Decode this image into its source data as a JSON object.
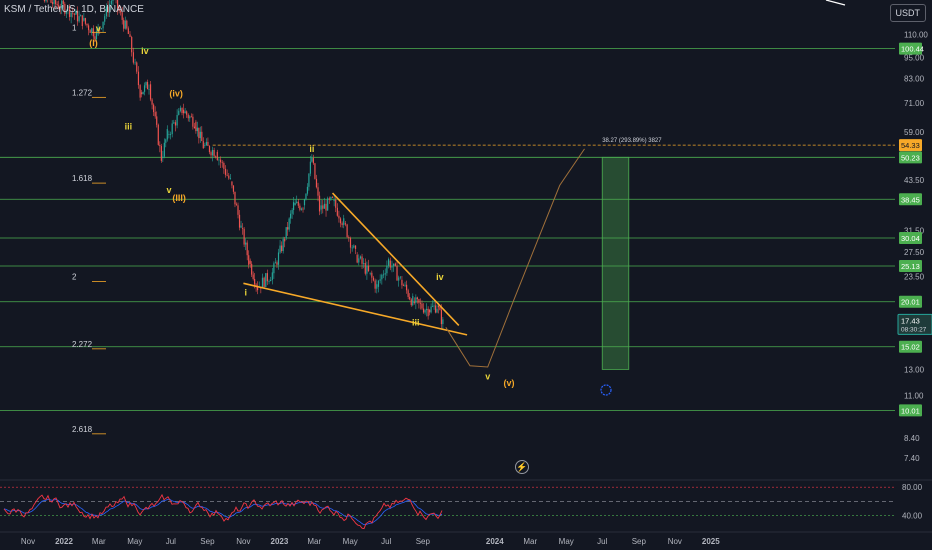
{
  "header": {
    "symbol_label": "KSM / TetherUS, 1D, BINANCE",
    "currency_button": "USDT"
  },
  "price_tag": {
    "price": "17.43",
    "timer": "08:30:27"
  },
  "target_label": "38.27 (293.89%) 3827",
  "colors": {
    "background": "#131722",
    "level_line": "#4caf50",
    "level_tag": "#4caf50",
    "trendline": "#f7a928",
    "candle_up": "#26a69a",
    "candle_down": "#ef5350",
    "projection": "#a0703a",
    "target_dash": "#f7a928",
    "rsi_line": "#f23645",
    "rsi_ma": "#2962ff"
  },
  "chart_data": {
    "type": "candlestick",
    "title": "KSM / TetherUS, 1D, BINANCE",
    "yaxis_scale": "log",
    "ylim": [
      6.5,
      150
    ],
    "y_ticks": [
      "110.00",
      "95.00",
      "83.00",
      "71.00",
      "59.00",
      "50.23",
      "43.50",
      "38.45",
      "31.50",
      "30.04",
      "27.50",
      "25.13",
      "23.50",
      "20.01",
      "15.02",
      "13.00",
      "11.00",
      "10.01",
      "8.40",
      "7.40"
    ],
    "x_ticks": [
      "Nov",
      "2022",
      "Mar",
      "May",
      "Jul",
      "Sep",
      "Nov",
      "2023",
      "Mar",
      "May",
      "Jul",
      "Sep",
      "2024",
      "Mar",
      "May",
      "Jul",
      "Sep",
      "Nov",
      "2025"
    ],
    "price_series": [
      {
        "date": "2021-10-20",
        "price": 150
      },
      {
        "date": "2021-11-15",
        "price": 148
      },
      {
        "date": "2021-12-10",
        "price": 135
      },
      {
        "date": "2022-01-05",
        "price": 130
      },
      {
        "date": "2022-02-01",
        "price": 120
      },
      {
        "date": "2022-02-25",
        "price": 110
      },
      {
        "date": "2022-03-25",
        "price": 140
      },
      {
        "date": "2022-04-20",
        "price": 110
      },
      {
        "date": "2022-05-10",
        "price": 76
      },
      {
        "date": "2022-05-25",
        "price": 80
      },
      {
        "date": "2022-06-15",
        "price": 50
      },
      {
        "date": "2022-06-25",
        "price": 58
      },
      {
        "date": "2022-07-20",
        "price": 68
      },
      {
        "date": "2022-08-10",
        "price": 63
      },
      {
        "date": "2022-08-25",
        "price": 54
      },
      {
        "date": "2022-09-15",
        "price": 52
      },
      {
        "date": "2022-10-10",
        "price": 43
      },
      {
        "date": "2022-10-28",
        "price": 32
      },
      {
        "date": "2022-11-10",
        "price": 26
      },
      {
        "date": "2022-11-25",
        "price": 22
      },
      {
        "date": "2022-12-20",
        "price": 24
      },
      {
        "date": "2023-01-10",
        "price": 30
      },
      {
        "date": "2023-01-25",
        "price": 37
      },
      {
        "date": "2023-02-10",
        "price": 37
      },
      {
        "date": "2023-02-25",
        "price": 50
      },
      {
        "date": "2023-03-10",
        "price": 36
      },
      {
        "date": "2023-04-01",
        "price": 38
      },
      {
        "date": "2023-04-20",
        "price": 33
      },
      {
        "date": "2023-05-10",
        "price": 27
      },
      {
        "date": "2023-06-01",
        "price": 24
      },
      {
        "date": "2023-06-15",
        "price": 22
      },
      {
        "date": "2023-07-05",
        "price": 26
      },
      {
        "date": "2023-07-25",
        "price": 23
      },
      {
        "date": "2023-08-15",
        "price": 20
      },
      {
        "date": "2023-09-10",
        "price": 19
      },
      {
        "date": "2023-09-25",
        "price": 19.5
      },
      {
        "date": "2023-10-05",
        "price": 17.43
      }
    ],
    "horizontal_levels": [
      100.44,
      50.23,
      38.45,
      30.04,
      25.13,
      20.01,
      15.02,
      10.01
    ],
    "fib_labels": [
      {
        "label": "1",
        "price": 115
      },
      {
        "label": "1.272",
        "price": 76
      },
      {
        "label": "1.618",
        "price": 44
      },
      {
        "label": "2",
        "price": 23.5
      },
      {
        "label": "2.272",
        "price": 15.3
      },
      {
        "label": "2.618",
        "price": 8.9
      }
    ],
    "wave_labels": [
      {
        "text": "i",
        "date": "2022-01-01",
        "price": 150,
        "color": "yellow"
      },
      {
        "text": "v",
        "date": "2022-02-28",
        "price": 112,
        "color": "yellow"
      },
      {
        "text": "(I)",
        "date": "2022-02-20",
        "price": 102,
        "color": "orange"
      },
      {
        "text": "iv",
        "date": "2022-05-18",
        "price": 97,
        "color": "yellow"
      },
      {
        "text": "(iv)",
        "date": "2022-07-10",
        "price": 74,
        "color": "orange"
      },
      {
        "text": "iii",
        "date": "2022-04-20",
        "price": 60,
        "color": "yellow"
      },
      {
        "text": "v",
        "date": "2022-06-28",
        "price": 40,
        "color": "yellow"
      },
      {
        "text": "(III)",
        "date": "2022-07-15",
        "price": 38,
        "color": "orange"
      },
      {
        "text": "ii",
        "date": "2023-02-25",
        "price": 52,
        "color": "yellow"
      },
      {
        "text": "i",
        "date": "2022-11-05",
        "price": 20.8,
        "color": "yellow"
      },
      {
        "text": "iv",
        "date": "2023-09-30",
        "price": 23,
        "color": "yellow"
      },
      {
        "text": "iii",
        "date": "2023-08-20",
        "price": 17.2,
        "color": "yellow"
      },
      {
        "text": "v",
        "date": "2023-12-20",
        "price": 12.2,
        "color": "yellow"
      },
      {
        "text": "(v)",
        "date": "2024-01-25",
        "price": 11.7,
        "color": "orange"
      }
    ],
    "target_box": {
      "from_date": "2024-07-01",
      "to_date": "2024-08-15",
      "price_low": 13.0,
      "price_high": 50.23
    },
    "rsi_levels": [
      80,
      60,
      40
    ],
    "rsi_ticks": [
      "80.00",
      "40.00"
    ]
  }
}
